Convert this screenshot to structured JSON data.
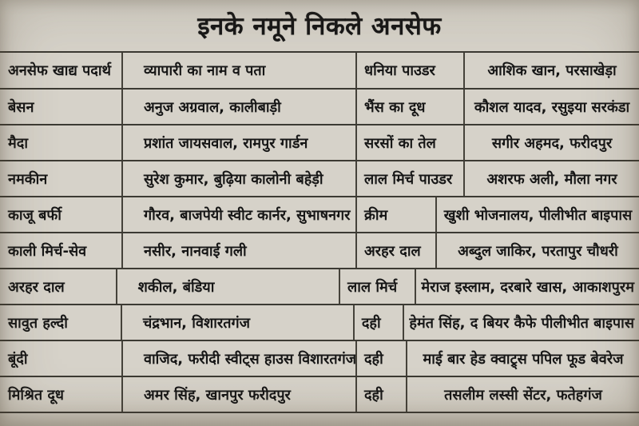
{
  "title": "इनके नमूने निकले अनसेफ",
  "colors": {
    "background": "#d6d2c9",
    "text": "#161616",
    "line": "#3c3a33"
  },
  "table": {
    "columns": {
      "item_left_header": "अनसेफ खाद्य पदार्थ",
      "trader_left_header": "व्यापारी का नाम व पता"
    },
    "rows": [
      {
        "item_left": "अनसेफ खाद्य पदार्थ",
        "trader_left": "व्यापारी का नाम व पता",
        "item_right": "धनिया पाउडर",
        "trader_right": "आशिक खान, परसाखेड़ा"
      },
      {
        "item_left": "बेसन",
        "trader_left": "अनुज अग्रवाल, कालीबाड़ी",
        "item_right": "भैंस का दूध",
        "trader_right": "कौशल यादव, रसुइया सरकंडा"
      },
      {
        "item_left": "मैदा",
        "trader_left": "प्रशांत जायसवाल, रामपुर गार्डन",
        "item_right": "सरसों का तेल",
        "trader_right": "सगीर अहमद, फरीदपुर"
      },
      {
        "item_left": "नमकीन",
        "trader_left": "सुरेश कुमार, बुढ़िया कालोनी बहेड़ी",
        "item_right": "लाल मिर्च पाउडर",
        "trader_right": "अशरफ अली, मौला नगर"
      },
      {
        "item_left": "काजू बर्फी",
        "trader_left": "गौरव, बाजपेयी स्वीट कार्नर, सुभाषनगर",
        "item_right": "क्रीम",
        "trader_right": "खुशी भोजनालय, पीलीभीत बाइपास"
      },
      {
        "item_left": "काली मिर्च-सेव",
        "trader_left": "नसीर, नानवाई गली",
        "item_right": "अरहर दाल",
        "trader_right": "अब्दुल जाकिर, परतापुर चौधरी"
      },
      {
        "item_left": "अरहर दाल",
        "trader_left": "शकील, बंडिया",
        "item_right": "लाल मिर्च",
        "trader_right": "मेराज इस्लाम, दरबारे खास, आकाशपुरम"
      },
      {
        "item_left": "सावुत हल्दी",
        "trader_left": "चंद्रभान, विशारतगंज",
        "item_right": "दही",
        "trader_right": "हेमंत सिंह, द बियर कैफे पीलीभीत बाइपास"
      },
      {
        "item_left": "बूंदी",
        "trader_left": "वाजिद, फरीदी स्वीट्स हाउस विशारतगंज",
        "item_right": "दही",
        "trader_right": "माई बार हेड क्वाट्र्स पपिल फूड बेवरेज"
      },
      {
        "item_left": "मिश्रित दूध",
        "trader_left": "अमर सिंह, खानपुर फरीदपुर",
        "item_right": "दही",
        "trader_right": "तसलीम लस्सी सेंटर, फतेहगंज"
      }
    ]
  }
}
